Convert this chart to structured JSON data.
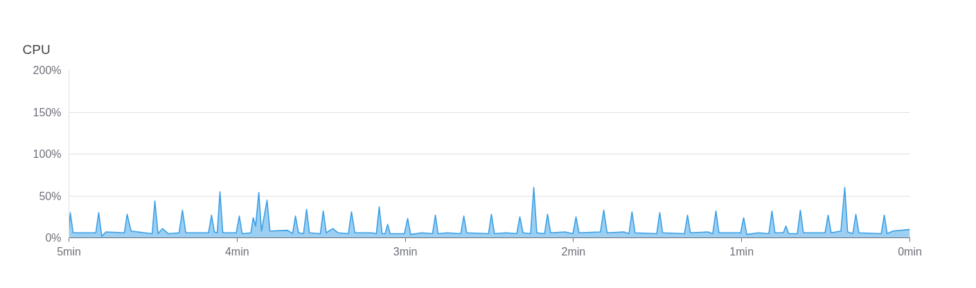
{
  "chart_data": {
    "type": "area",
    "title": "CPU",
    "x": [
      5.0,
      4.992,
      4.975,
      4.9,
      4.84,
      4.823,
      4.805,
      4.78,
      4.67,
      4.654,
      4.63,
      4.55,
      4.505,
      4.489,
      4.47,
      4.444,
      4.41,
      4.345,
      4.325,
      4.305,
      4.2,
      4.17,
      4.152,
      4.135,
      4.118,
      4.102,
      4.085,
      4.005,
      3.987,
      3.97,
      3.918,
      3.904,
      3.89,
      3.871,
      3.855,
      3.822,
      3.805,
      3.7,
      3.67,
      3.653,
      3.635,
      3.605,
      3.587,
      3.57,
      3.505,
      3.488,
      3.47,
      3.431,
      3.4,
      3.338,
      3.32,
      3.3,
      3.2,
      3.172,
      3.155,
      3.138,
      3.12,
      3.105,
      3.09,
      3.005,
      2.986,
      2.968,
      2.9,
      2.838,
      2.821,
      2.805,
      2.75,
      2.67,
      2.652,
      2.635,
      2.505,
      2.488,
      2.47,
      2.4,
      2.337,
      2.319,
      2.3,
      2.255,
      2.236,
      2.218,
      2.172,
      2.154,
      2.136,
      2.05,
      2.003,
      1.985,
      1.967,
      1.84,
      1.82,
      1.8,
      1.7,
      1.67,
      1.652,
      1.634,
      1.505,
      1.487,
      1.47,
      1.34,
      1.322,
      1.305,
      1.2,
      1.172,
      1.153,
      1.135,
      1.006,
      0.988,
      0.97,
      0.9,
      0.838,
      0.82,
      0.802,
      0.752,
      0.737,
      0.72,
      0.669,
      0.651,
      0.633,
      0.504,
      0.486,
      0.468,
      0.41,
      0.387,
      0.37,
      0.339,
      0.321,
      0.303,
      0.17,
      0.152,
      0.135,
      0.1,
      0.0
    ],
    "series": [
      {
        "color": "#3a9fe6",
        "values": [
          10,
          30,
          6,
          6,
          6,
          30,
          2,
          7,
          6,
          28,
          8,
          6,
          5,
          44,
          5,
          11,
          5,
          6,
          33,
          6,
          6,
          6,
          27,
          7,
          6,
          55,
          6,
          6,
          26,
          5,
          6,
          24,
          14,
          54,
          8,
          45,
          8,
          9,
          5,
          26,
          6,
          5,
          34,
          6,
          5,
          32,
          6,
          11,
          6,
          5,
          31,
          6,
          6,
          5,
          37,
          5,
          5,
          16,
          5,
          5,
          23,
          4,
          6,
          5,
          27,
          5,
          6,
          5,
          26,
          6,
          5,
          28,
          5,
          6,
          5,
          25,
          6,
          5,
          60,
          6,
          5,
          28,
          6,
          7,
          5,
          25,
          6,
          7,
          33,
          6,
          7,
          5,
          31,
          6,
          5,
          30,
          6,
          5,
          27,
          6,
          7,
          5,
          32,
          6,
          6,
          24,
          4,
          6,
          5,
          32,
          6,
          6,
          14,
          5,
          5,
          33,
          6,
          6,
          27,
          6,
          8,
          60,
          7,
          5,
          28,
          6,
          5,
          27,
          5,
          8,
          10
        ]
      }
    ],
    "xlim": [
      5,
      0
    ],
    "xticks": [
      {
        "value": 5,
        "label": "5min"
      },
      {
        "value": 4,
        "label": "4min"
      },
      {
        "value": 3,
        "label": "3min"
      },
      {
        "value": 2,
        "label": "2min"
      },
      {
        "value": 1,
        "label": "1min"
      },
      {
        "value": 0,
        "label": "0min"
      }
    ],
    "ylim": [
      0,
      200
    ],
    "yticks": [
      {
        "value": 0,
        "label": "0%"
      },
      {
        "value": 50,
        "label": "50%"
      },
      {
        "value": 100,
        "label": "100%"
      },
      {
        "value": 150,
        "label": "150%"
      },
      {
        "value": 200,
        "label": "200%"
      }
    ],
    "grid": "y"
  }
}
